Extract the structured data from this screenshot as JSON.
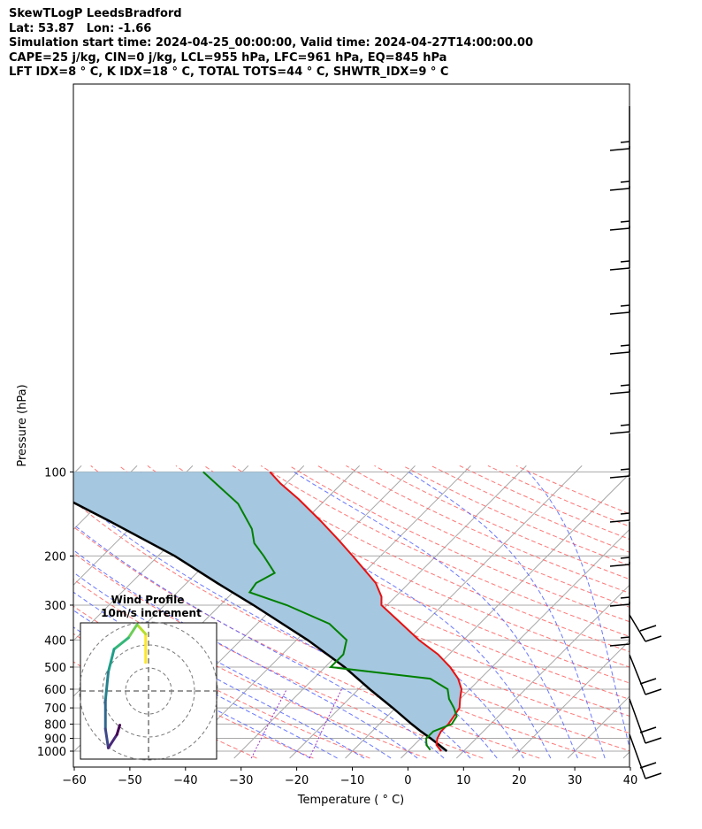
{
  "header": {
    "line1": "SkewTLogP LeedsBradford",
    "line2": "Lat: 53.87   Lon: -1.66",
    "line3": "Simulation start time: 2024-04-25_00:00:00, Valid time: 2024-04-27T14:00:00.00",
    "line4": "CAPE=25 j/kg, CIN=0 j/kg, LCL=955 hPa, LFC=961 hPa, EQ=845 hPa",
    "line5": "LFT IDX=8 ° C, K IDX=18 ° C, TOTAL TOTS=44 ° C, SHWTR_IDX=9 ° C"
  },
  "chart_data": {
    "type": "line",
    "subtype": "skew-t log-p",
    "xlabel": "Temperature ( ° C)",
    "ylabel": "Pressure (hPa)",
    "xlim": [
      -60,
      40
    ],
    "ylim": [
      1050,
      100
    ],
    "y_scale": "log",
    "grid": true,
    "x_ticks": [
      "−60",
      "−50",
      "−40",
      "−30",
      "−20",
      "−10",
      "0",
      "10",
      "20",
      "30",
      "40"
    ],
    "y_ticks": [
      "100",
      "200",
      "300",
      "400",
      "500",
      "600",
      "700",
      "800",
      "900",
      "1000"
    ],
    "colors": {
      "temperature": "#e81010",
      "dewpoint": "#008000",
      "parcel": "#000000",
      "cape_fill": "#a5c7df",
      "dry_adiabat": "#ff5f5f",
      "moist_adiabat": "#4f5fff",
      "mixing_ratio": "#9a30c8",
      "isotherm": "#a8a8a8"
    },
    "series": [
      {
        "role": "temperature",
        "points": [
          [
            1000,
            6.0
          ],
          [
            950,
            4.0
          ],
          [
            900,
            3.0
          ],
          [
            850,
            2.4
          ],
          [
            800,
            2.4
          ],
          [
            750,
            2.0
          ],
          [
            700,
            1.5
          ],
          [
            650,
            0.0
          ],
          [
            600,
            -1.5
          ],
          [
            550,
            -4.0
          ],
          [
            500,
            -7.5
          ],
          [
            450,
            -12.0
          ],
          [
            400,
            -18.0
          ],
          [
            350,
            -24.0
          ],
          [
            300,
            -31.0
          ],
          [
            280,
            -32.5
          ],
          [
            250,
            -36.0
          ],
          [
            200,
            -45.0
          ],
          [
            175,
            -50.5
          ],
          [
            150,
            -57.0
          ],
          [
            125,
            -65.0
          ],
          [
            110,
            -71.0
          ],
          [
            100,
            -75.0
          ]
        ]
      },
      {
        "role": "dewpoint",
        "points": [
          [
            990,
            3.8
          ],
          [
            950,
            2.2
          ],
          [
            900,
            1.0
          ],
          [
            850,
            1.0
          ],
          [
            800,
            3.0
          ],
          [
            750,
            2.5
          ],
          [
            700,
            0.5
          ],
          [
            650,
            -2.0
          ],
          [
            600,
            -4.0
          ],
          [
            550,
            -9.0
          ],
          [
            500,
            -29.0
          ],
          [
            450,
            -29.0
          ],
          [
            400,
            -31.0
          ],
          [
            350,
            -37.0
          ],
          [
            300,
            -48.0
          ],
          [
            270,
            -57.0
          ],
          [
            250,
            -57.5
          ],
          [
            230,
            -56.0
          ],
          [
            200,
            -61.0
          ],
          [
            180,
            -65.0
          ],
          [
            160,
            -68.0
          ],
          [
            130,
            -75.0
          ],
          [
            100,
            -87.0
          ]
        ]
      },
      {
        "role": "parcel",
        "points": [
          [
            1000,
            7.0
          ],
          [
            950,
            4.5
          ],
          [
            900,
            1.8
          ],
          [
            850,
            -1.2
          ],
          [
            800,
            -4.2
          ],
          [
            700,
            -10.5
          ],
          [
            600,
            -18.0
          ],
          [
            500,
            -26.5
          ],
          [
            400,
            -38.0
          ],
          [
            300,
            -54.0
          ],
          [
            250,
            -64.5
          ],
          [
            200,
            -77.0
          ],
          [
            150,
            -95.0
          ],
          [
            100,
            -121.0
          ]
        ]
      }
    ],
    "wind_profile": {
      "title": "Wind Profile",
      "subtitle": "10m/s increment",
      "hodograph": [
        [
          -0.5,
          1.5
        ],
        [
          -0.5,
          3.0
        ],
        [
          -2.0,
          3.5
        ],
        [
          -3.5,
          2.8
        ],
        [
          -6.0,
          2.2
        ],
        [
          -7.0,
          1.0
        ],
        [
          -7.5,
          -0.5
        ],
        [
          -7.5,
          -2.0
        ],
        [
          -7.0,
          -3.0
        ],
        [
          -5.5,
          -2.3
        ],
        [
          -5.0,
          -1.8
        ]
      ]
    }
  }
}
